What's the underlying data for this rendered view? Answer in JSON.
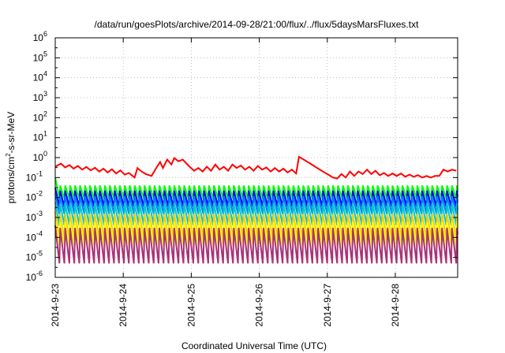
{
  "chart_data": {
    "type": "line",
    "title": "/data/run/goesPlots/archive/2014-09-28/21:00/flux/../flux/5daysMarsFluxes.txt",
    "xlabel": "Coordinated Universal Time (UTC)",
    "ylabel": {
      "base": "protons/cm",
      "sup": "2",
      "rest": "-s-sr-MeV"
    },
    "y_scale": "log",
    "ylim": [
      1e-06,
      1000000.0
    ],
    "y_ticks": [
      {
        "value": 1e-06,
        "mantissa": "10",
        "exp": "-6"
      },
      {
        "value": 1e-05,
        "mantissa": "10",
        "exp": "-5"
      },
      {
        "value": 0.0001,
        "mantissa": "10",
        "exp": "-4"
      },
      {
        "value": 0.001,
        "mantissa": "10",
        "exp": "-3"
      },
      {
        "value": 0.01,
        "mantissa": "10",
        "exp": "-2"
      },
      {
        "value": 0.1,
        "mantissa": "10",
        "exp": "-1"
      },
      {
        "value": 1,
        "mantissa": "10",
        "exp": "0"
      },
      {
        "value": 10.0,
        "mantissa": "10",
        "exp": "1"
      },
      {
        "value": 100.0,
        "mantissa": "10",
        "exp": "2"
      },
      {
        "value": 1000.0,
        "mantissa": "10",
        "exp": "3"
      },
      {
        "value": 10000.0,
        "mantissa": "10",
        "exp": "4"
      },
      {
        "value": 100000.0,
        "mantissa": "10",
        "exp": "5"
      },
      {
        "value": 1000000.0,
        "mantissa": "10",
        "exp": "6"
      }
    ],
    "xlim": [
      "2014-09-23T00:00",
      "2014-09-28T22:00"
    ],
    "x_ticks": [
      {
        "value": "2014-09-23T00:00",
        "label": "2014-9-23"
      },
      {
        "value": "2014-09-24T00:00",
        "label": "2014-9-24"
      },
      {
        "value": "2014-09-25T00:00",
        "label": "2014-9-25"
      },
      {
        "value": "2014-09-26T00:00",
        "label": "2014-9-26"
      },
      {
        "value": "2014-09-27T00:00",
        "label": "2014-9-27"
      },
      {
        "value": "2014-09-28T00:00",
        "label": "2014-9-28"
      }
    ],
    "grid": true,
    "series": [
      {
        "color": "#ff0000",
        "values": [
          [
            "2014-09-23T00:00",
            0.35
          ],
          [
            "2014-09-23T02:00",
            0.5
          ],
          [
            "2014-09-23T03:30",
            0.32
          ],
          [
            "2014-09-23T05:00",
            0.42
          ],
          [
            "2014-09-23T06:30",
            0.28
          ],
          [
            "2014-09-23T08:00",
            0.38
          ],
          [
            "2014-09-23T09:30",
            0.25
          ],
          [
            "2014-09-23T11:00",
            0.34
          ],
          [
            "2014-09-23T12:30",
            0.23
          ],
          [
            "2014-09-23T14:00",
            0.31
          ],
          [
            "2014-09-23T15:30",
            0.2
          ],
          [
            "2014-09-23T17:00",
            0.28
          ],
          [
            "2014-09-23T18:30",
            0.18
          ],
          [
            "2014-09-23T20:00",
            0.26
          ],
          [
            "2014-09-23T21:30",
            0.16
          ],
          [
            "2014-09-23T23:00",
            0.23
          ],
          [
            "2014-09-24T00:30",
            0.14
          ],
          [
            "2014-09-24T02:00",
            0.17
          ],
          [
            "2014-09-24T04:00",
            0.1
          ],
          [
            "2014-09-24T05:00",
            0.3
          ],
          [
            "2014-09-24T06:30",
            0.2
          ],
          [
            "2014-09-24T08:00",
            0.15
          ],
          [
            "2014-09-24T10:00",
            0.12
          ],
          [
            "2014-09-24T11:30",
            0.28
          ],
          [
            "2014-09-24T13:00",
            0.6
          ],
          [
            "2014-09-24T14:00",
            0.3
          ],
          [
            "2014-09-24T15:30",
            0.8
          ],
          [
            "2014-09-24T17:00",
            0.45
          ],
          [
            "2014-09-24T18:00",
            0.95
          ],
          [
            "2014-09-24T19:30",
            0.65
          ],
          [
            "2014-09-24T21:00",
            0.8
          ],
          [
            "2014-09-24T23:00",
            0.4
          ],
          [
            "2014-09-25T01:00",
            0.22
          ],
          [
            "2014-09-25T02:30",
            0.3
          ],
          [
            "2014-09-25T04:00",
            0.2
          ],
          [
            "2014-09-25T05:30",
            0.35
          ],
          [
            "2014-09-25T07:00",
            0.22
          ],
          [
            "2014-09-25T08:30",
            0.45
          ],
          [
            "2014-09-25T10:00",
            0.25
          ],
          [
            "2014-09-25T11:30",
            0.35
          ],
          [
            "2014-09-25T13:00",
            0.22
          ],
          [
            "2014-09-25T14:30",
            0.45
          ],
          [
            "2014-09-25T16:00",
            0.3
          ],
          [
            "2014-09-25T17:30",
            0.4
          ],
          [
            "2014-09-25T19:00",
            0.25
          ],
          [
            "2014-09-25T20:30",
            0.35
          ],
          [
            "2014-09-25T22:00",
            0.22
          ],
          [
            "2014-09-25T23:30",
            0.38
          ],
          [
            "2014-09-26T01:00",
            0.25
          ],
          [
            "2014-09-26T02:30",
            0.32
          ],
          [
            "2014-09-26T04:00",
            0.2
          ],
          [
            "2014-09-26T05:30",
            0.3
          ],
          [
            "2014-09-26T07:00",
            0.2
          ],
          [
            "2014-09-26T08:30",
            0.28
          ],
          [
            "2014-09-26T10:00",
            0.18
          ],
          [
            "2014-09-26T11:30",
            0.25
          ],
          [
            "2014-09-26T13:00",
            0.16
          ],
          [
            "2014-09-26T14:00",
            1.1
          ],
          [
            "2014-09-26T16:00",
            0.75
          ],
          [
            "2014-09-26T18:00",
            0.5
          ],
          [
            "2014-09-26T20:00",
            0.33
          ],
          [
            "2014-09-26T22:00",
            0.22
          ],
          [
            "2014-09-27T00:00",
            0.15
          ],
          [
            "2014-09-27T02:00",
            0.1
          ],
          [
            "2014-09-27T03:30",
            0.09
          ],
          [
            "2014-09-27T05:00",
            0.15
          ],
          [
            "2014-09-27T06:30",
            0.1
          ],
          [
            "2014-09-27T08:00",
            0.2
          ],
          [
            "2014-09-27T09:30",
            0.12
          ],
          [
            "2014-09-27T11:00",
            0.2
          ],
          [
            "2014-09-27T12:30",
            0.15
          ],
          [
            "2014-09-27T14:00",
            0.25
          ],
          [
            "2014-09-27T15:30",
            0.15
          ],
          [
            "2014-09-27T17:00",
            0.22
          ],
          [
            "2014-09-27T18:30",
            0.13
          ],
          [
            "2014-09-27T20:00",
            0.17
          ],
          [
            "2014-09-27T21:30",
            0.12
          ],
          [
            "2014-09-27T23:00",
            0.16
          ],
          [
            "2014-09-28T00:30",
            0.12
          ],
          [
            "2014-09-28T02:00",
            0.16
          ],
          [
            "2014-09-28T03:30",
            0.11
          ],
          [
            "2014-09-28T05:00",
            0.14
          ],
          [
            "2014-09-28T06:30",
            0.11
          ],
          [
            "2014-09-28T08:00",
            0.13
          ],
          [
            "2014-09-28T09:30",
            0.1
          ],
          [
            "2014-09-28T11:00",
            0.12
          ],
          [
            "2014-09-28T12:30",
            0.1
          ],
          [
            "2014-09-28T14:00",
            0.12
          ],
          [
            "2014-09-28T15:30",
            0.12
          ],
          [
            "2014-09-28T17:00",
            0.25
          ],
          [
            "2014-09-28T18:30",
            0.2
          ],
          [
            "2014-09-28T20:00",
            0.25
          ],
          [
            "2014-09-28T21:30",
            0.22
          ]
        ]
      },
      {
        "color": "#00ff00",
        "sawtooth": {
          "period_hours": 1.75,
          "start_high": 0.1,
          "high": 0.04,
          "low": 0.009
        }
      },
      {
        "color": "#0000ff",
        "sawtooth": {
          "period_hours": 1.75,
          "start_high": 0.03,
          "high": 0.022,
          "low": 0.0035
        }
      },
      {
        "color": "#0080ff",
        "sawtooth": {
          "period_hours": 1.75,
          "start_high": 0.015,
          "high": 0.012,
          "low": 0.0015
        }
      },
      {
        "color": "#00c8c8",
        "sawtooth": {
          "period_hours": 1.75,
          "start_high": 0.006,
          "high": 0.005,
          "low": 0.0004
        }
      },
      {
        "color": "#ffcc00",
        "sawtooth": {
          "period_hours": 1.75,
          "start_high": 0.002,
          "high": 0.0015,
          "low": 9e-05
        }
      },
      {
        "color": "#ffff00",
        "sawtooth": {
          "period_hours": 1.75,
          "start_high": 0.0008,
          "high": 0.0006,
          "low": 4e-05
        }
      },
      {
        "color": "#aa3377",
        "sawtooth": {
          "period_hours": 1.75,
          "start_high": 0.0004,
          "high": 0.0003,
          "low": 5e-06
        }
      }
    ]
  }
}
